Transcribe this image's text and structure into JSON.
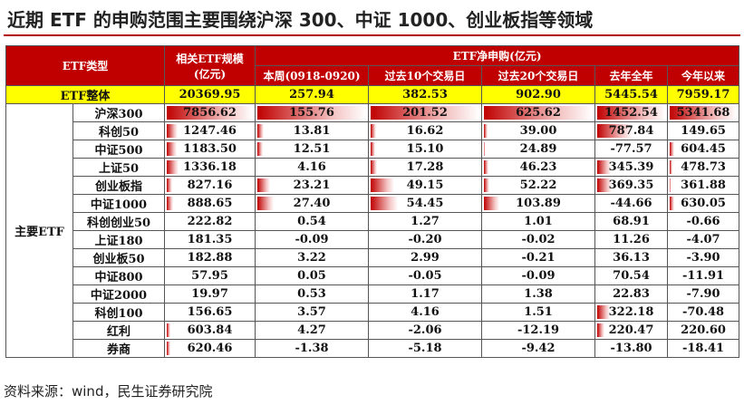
{
  "title": "近期 ETF 的申购范围主要围绕沪深 300、中证 1000、创业板指等领域",
  "table": {
    "header": {
      "type": "ETF类型",
      "scale": "相关ETF规模",
      "scale_unit": "(亿元)",
      "flow": "ETF净申购(亿元)",
      "columns": [
        "本周(0918-0920)",
        "过去10个交易日",
        "过去20个交易日",
        "去年全年",
        "今年以来"
      ]
    },
    "total": {
      "label": "ETF整体",
      "values": [
        "20369.95",
        "257.94",
        "382.53",
        "902.90",
        "5445.54",
        "7959.17"
      ]
    },
    "group_label": "主要ETF",
    "rows": [
      {
        "name": "沪深300",
        "values": [
          "7856.62",
          "155.76",
          "201.52",
          "625.62",
          "1452.54",
          "5341.68"
        ]
      },
      {
        "name": "科创50",
        "values": [
          "1247.46",
          "13.81",
          "16.62",
          "39.00",
          "787.84",
          "149.65"
        ]
      },
      {
        "name": "中证500",
        "values": [
          "1183.50",
          "12.51",
          "15.10",
          "24.89",
          "-77.57",
          "604.45"
        ]
      },
      {
        "name": "上证50",
        "values": [
          "1336.18",
          "4.16",
          "17.28",
          "46.23",
          "345.39",
          "478.73"
        ]
      },
      {
        "name": "创业板指",
        "values": [
          "827.16",
          "23.21",
          "49.15",
          "52.22",
          "369.35",
          "361.88"
        ]
      },
      {
        "name": "中证1000",
        "values": [
          "888.65",
          "27.40",
          "54.45",
          "103.89",
          "-44.66",
          "630.05"
        ]
      },
      {
        "name": "科创创业50",
        "values": [
          "222.82",
          "0.54",
          "1.27",
          "1.01",
          "68.91",
          "-0.66"
        ]
      },
      {
        "name": "上证180",
        "values": [
          "181.35",
          "-0.09",
          "-0.20",
          "-0.02",
          "11.26",
          "-4.07"
        ]
      },
      {
        "name": "创业板50",
        "values": [
          "182.88",
          "3.22",
          "2.99",
          "-0.21",
          "36.13",
          "-3.90"
        ]
      },
      {
        "name": "中证800",
        "values": [
          "57.95",
          "0.05",
          "-0.05",
          "-0.09",
          "70.54",
          "-11.91"
        ]
      },
      {
        "name": "中证2000",
        "values": [
          "19.97",
          "0.53",
          "1.17",
          "1.38",
          "22.83",
          "-7.90"
        ]
      },
      {
        "name": "科创100",
        "values": [
          "156.65",
          "3.57",
          "4.16",
          "1.51",
          "322.18",
          "-70.48"
        ]
      },
      {
        "name": "红利",
        "values": [
          "603.84",
          "4.27",
          "-2.06",
          "-12.19",
          "220.47",
          "220.60"
        ]
      },
      {
        "name": "券商",
        "values": [
          "620.46",
          "-1.38",
          "-5.18",
          "-9.42",
          "-13.80",
          "-18.41"
        ]
      }
    ]
  },
  "source": "资料来源：wind，民生证券研究院"
}
